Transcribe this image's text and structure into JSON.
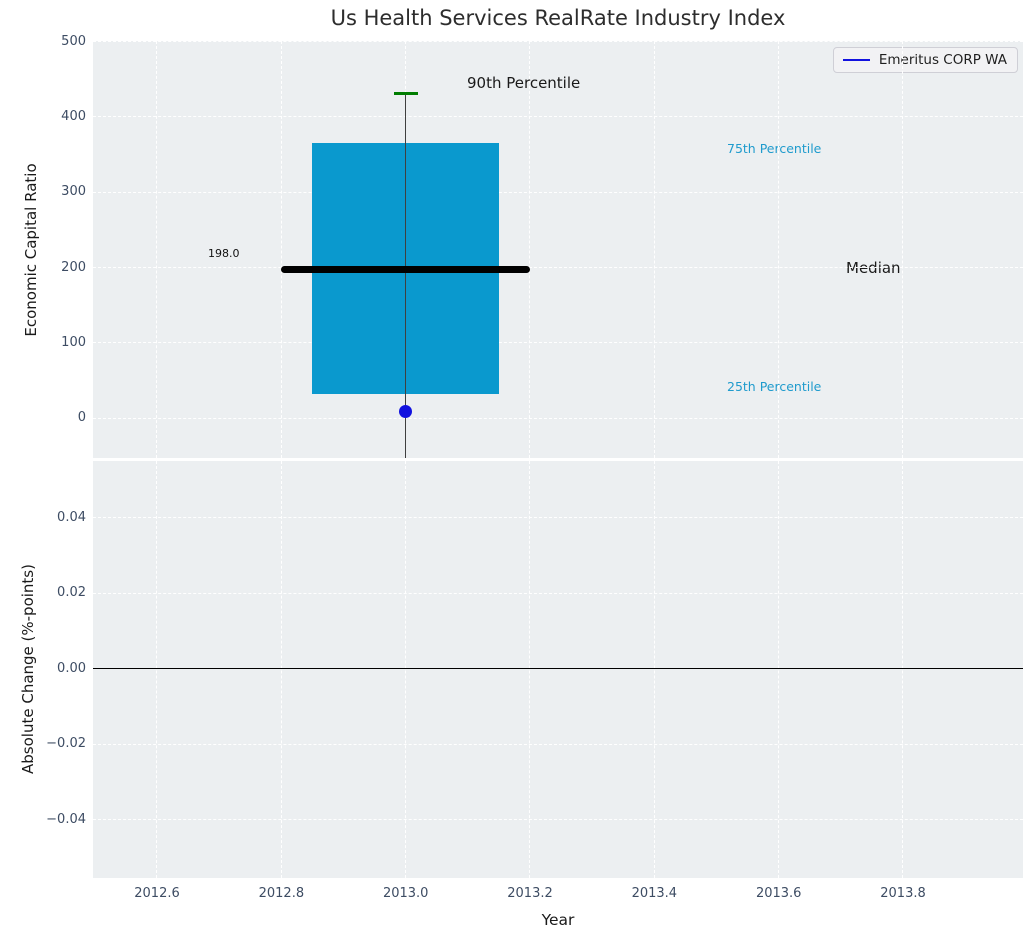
{
  "title": "Us Health Services RealRate Industry Index",
  "legend": {
    "label": "Emeritus CORP WA",
    "line_color": "#1212DF"
  },
  "axes": {
    "ylabel_top": "Economic Capital Ratio",
    "ylabel_bottom": "Absolute Change (%-points)",
    "xlabel": "Year"
  },
  "annotations": {
    "p90": "90th Percentile",
    "p75": "75th Percentile",
    "median": "Median",
    "p25": "25th Percentile",
    "median_value_label": "198.0"
  },
  "colors": {
    "plot_bg": "#ECEFF1",
    "grid": "#FFFFFF",
    "box_fill": "#0A99CE",
    "percentile_label_blue": "#1F9BCD",
    "cap_green": "#007D00",
    "point_blue": "#1212DF",
    "median_line": "#000000",
    "zero_line": "#000000",
    "tick_label": "#3D4C63",
    "axis_label": "#1A1A1A",
    "title_color": "#2D2D2D"
  },
  "chart_data": [
    {
      "type": "boxplot",
      "subplot": "top",
      "title": "Us Health Services RealRate Industry Index",
      "ylabel": "Economic Capital Ratio",
      "series_name": "Emeritus CORP WA",
      "x_center": 2013.0,
      "box": {
        "p90": 431,
        "p75": 365,
        "median": 198.0,
        "p25": 33,
        "box_x": [
          2012.85,
          2013.15
        ],
        "median_x": [
          2012.8,
          2013.2
        ],
        "lower_whisker_clipped_below_axis": true
      },
      "company_point": {
        "x": 2013.0,
        "y": 9
      },
      "xlim": [
        2012.497,
        2013.993
      ],
      "ylim": [
        -52.4,
        500.7
      ],
      "yticks": [
        0,
        100,
        200,
        300,
        400,
        500
      ],
      "ytick_labels": [
        "0",
        "100",
        "200",
        "300",
        "400",
        "500"
      ],
      "xticks": [
        2012.6,
        2012.8,
        2013.0,
        2013.2,
        2013.4,
        2013.6,
        2013.8
      ],
      "grid": true,
      "legend_position": "upper right"
    },
    {
      "type": "line",
      "subplot": "bottom",
      "ylabel": "Absolute Change (%-points)",
      "xlabel": "Year",
      "series": [],
      "zero_reference_line": 0.0,
      "xlim": [
        2012.497,
        2013.993
      ],
      "ylim": [
        -0.0554,
        0.0551
      ],
      "yticks": [
        0.04,
        0.02,
        0.0,
        -0.02,
        -0.04
      ],
      "ytick_labels": [
        "0.04",
        "0.02",
        "0.00",
        "−0.02",
        "−0.04"
      ],
      "xticks": [
        2012.6,
        2012.8,
        2013.0,
        2013.2,
        2013.4,
        2013.6,
        2013.8
      ],
      "xtick_labels": [
        "2012.6",
        "2012.8",
        "2013.0",
        "2013.2",
        "2013.4",
        "2013.6",
        "2013.8"
      ],
      "grid": true
    }
  ]
}
